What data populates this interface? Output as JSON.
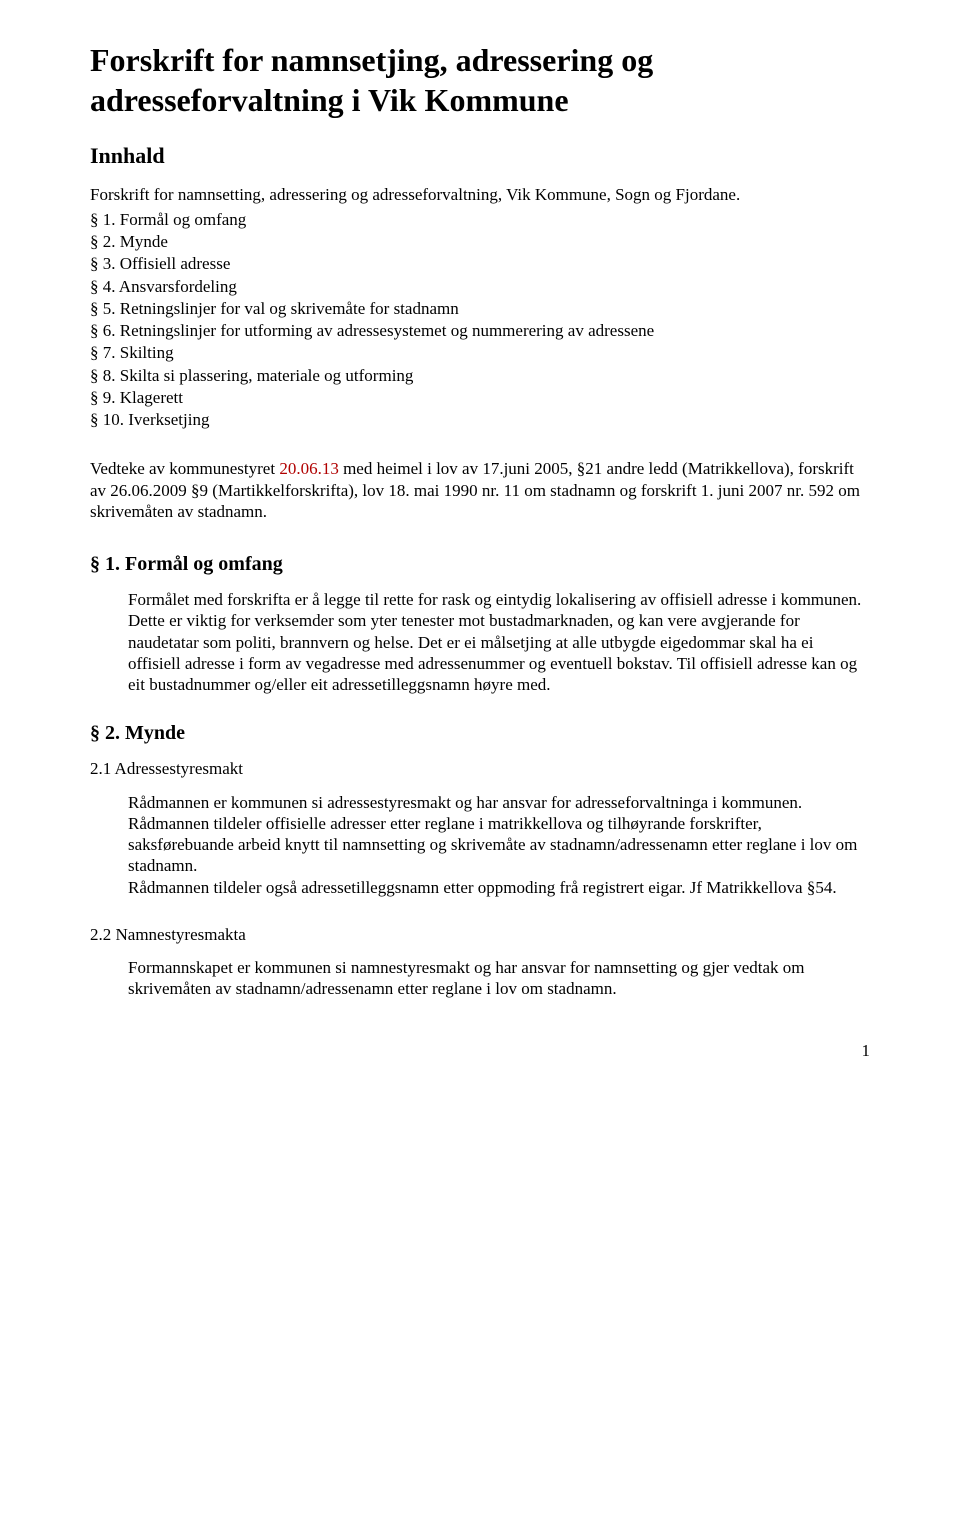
{
  "colors": {
    "text": "#000000",
    "bg": "#ffffff",
    "red": "#b00000"
  },
  "title": "Forskrift for namnsetjing, adressering og adresseforvaltning i Vik Kommune",
  "toc_heading": "Innhald",
  "toc_lead": "Forskrift for namnsetting, adressering og adresseforvaltning, Vik Kommune, Sogn og Fjordane.",
  "toc": [
    "§ 1. Formål og omfang",
    "§ 2. Mynde",
    "§ 3. Offisiell adresse",
    "§ 4. Ansvarsfordeling",
    "§ 5. Retningslinjer for val og skrivemåte for stadnamn",
    "§ 6. Retningslinjer for utforming av adressesystemet og nummerering av adressene",
    "§ 7. Skilting",
    "§ 8. Skilta si plassering, materiale og utforming",
    "§ 9. Klagerett",
    "§ 10. Iverksetjing"
  ],
  "adoption": {
    "prefix": "Vedteke av kommunestyret ",
    "red_part": "20.06.13",
    "suffix": "  med heimel i lov av 17.juni 2005, §21 andre ledd (Matrikkellova), forskrift av 26.06.2009 §9 (Martikkelforskrifta), lov 18. mai 1990 nr. 11 om stadnamn og forskrift 1. juni 2007 nr. 592 om skrivemåten av stadnamn."
  },
  "s1": {
    "heading": "§ 1. Formål og omfang",
    "body": "Formålet med forskrifta er å legge til rette for rask og eintydig lokalisering av offisiell adresse i kommunen. Dette er viktig for verksemder som yter tenester mot bustadmarknaden, og kan vere avgjerande for naudetatar som politi, brannvern og helse. Det er ei målsetjing at alle utbygde eigedommar skal ha ei offisiell adresse i form av vegadresse med adressenummer og eventuell bokstav. Til offisiell adresse kan og eit bustadnummer og/eller eit adressetilleggsnamn høyre med."
  },
  "s2": {
    "heading": "§ 2. Mynde",
    "sub1_label": "2.1 Adressestyresmakt",
    "sub1_body": "Rådmannen er kommunen si adressestyresmakt og har ansvar for adresseforvaltninga i kommunen. Rådmannen tildeler offisielle adresser etter reglane i matrikkellova og tilhøyrande forskrifter, saksførebuande arbeid knytt til namnsetting og skrivemåte av stadnamn/adressenamn etter reglane i lov om stadnamn.\nRådmannen tildeler også adressetilleggsnamn etter oppmoding frå registrert eigar. Jf Matrikkellova §54.",
    "sub2_label": "2.2 Namnestyresmakta",
    "sub2_body": "Formannskapet er kommunen si namnestyresmakt og har ansvar for namnsetting og gjer vedtak om skrivemåten av stadnamn/adressenamn etter reglane i lov om stadnamn."
  },
  "page_number": "1"
}
